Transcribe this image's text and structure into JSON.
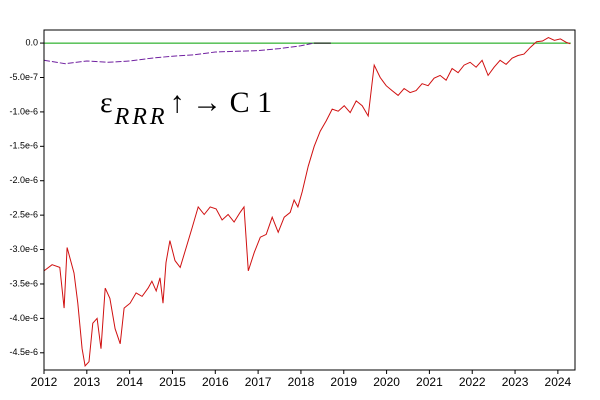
{
  "chart_data": {
    "type": "line",
    "annotation": {
      "base": "ε",
      "subscript": "RRR",
      "rest": "↑ → C 1"
    },
    "xlim": [
      2012,
      2024.4
    ],
    "xticks": [
      2012,
      2013,
      2014,
      2015,
      2016,
      2017,
      2018,
      2019,
      2020,
      2021,
      2022,
      2023,
      2024
    ],
    "ylim": [
      -4.75e-06,
      1.9e-07
    ],
    "yticks": [
      {
        "value": 0,
        "label": "0.0"
      },
      {
        "value": -5e-07,
        "label": "-5.0e-7"
      },
      {
        "value": -1e-06,
        "label": "-1.0e-6"
      },
      {
        "value": -1.5e-06,
        "label": "-1.5e-6"
      },
      {
        "value": -2e-06,
        "label": "-2.0e-6"
      },
      {
        "value": -2.5e-06,
        "label": "-2.5e-6"
      },
      {
        "value": -3e-06,
        "label": "-3.0e-6"
      },
      {
        "value": -3.5e-06,
        "label": "-3.5e-6"
      },
      {
        "value": -4e-06,
        "label": "-4.0e-6"
      },
      {
        "value": -4.5e-06,
        "label": "-4.5e-6"
      }
    ],
    "series": [
      {
        "color": "#00a000",
        "dashed": false,
        "x": [
          2012,
          2024.3
        ],
        "values": [
          0,
          0
        ]
      },
      {
        "color": "#7020a0",
        "dashed": true,
        "x": [
          2012.0,
          2012.5,
          2013.0,
          2013.5,
          2014.0,
          2014.5,
          2015.0,
          2015.5,
          2016.0,
          2016.5,
          2017.0,
          2017.5,
          2018.0,
          2018.3
        ],
        "values": [
          -2.5e-07,
          -3e-07,
          -2.6e-07,
          -2.8e-07,
          -2.6e-07,
          -2.2e-07,
          -1.9e-07,
          -1.7e-07,
          -1.3e-07,
          -1.2e-07,
          -1.1e-07,
          -8e-08,
          -4e-08,
          0
        ]
      },
      {
        "color": "#000000",
        "dashed": false,
        "x": [
          2018.3,
          2018.7
        ],
        "values": [
          0,
          0
        ]
      },
      {
        "color": "#d01010",
        "dashed": false,
        "x": [
          2012.0,
          2012.19,
          2012.37,
          2012.47,
          2012.54,
          2012.7,
          2012.79,
          2012.89,
          2012.96,
          2013.05,
          2013.14,
          2013.24,
          2013.33,
          2013.43,
          2013.54,
          2013.66,
          2013.78,
          2013.87,
          2014.01,
          2014.15,
          2014.29,
          2014.43,
          2014.52,
          2014.62,
          2014.71,
          2014.78,
          2014.85,
          2014.94,
          2015.06,
          2015.18,
          2015.32,
          2015.46,
          2015.6,
          2015.74,
          2015.88,
          2016.02,
          2016.16,
          2016.3,
          2016.44,
          2016.58,
          2016.67,
          2016.77,
          2016.91,
          2017.05,
          2017.19,
          2017.33,
          2017.47,
          2017.61,
          2017.75,
          2017.84,
          2017.93,
          2018.03,
          2018.17,
          2018.31,
          2018.45,
          2018.59,
          2018.73,
          2018.87,
          2019.01,
          2019.15,
          2019.29,
          2019.43,
          2019.57,
          2019.71,
          2019.85,
          2019.99,
          2020.13,
          2020.27,
          2020.41,
          2020.55,
          2020.69,
          2020.83,
          2020.97,
          2021.11,
          2021.25,
          2021.39,
          2021.53,
          2021.67,
          2021.81,
          2021.95,
          2022.09,
          2022.23,
          2022.37,
          2022.51,
          2022.65,
          2022.79,
          2022.93,
          2023.07,
          2023.21,
          2023.36,
          2023.5,
          2023.64,
          2023.78,
          2023.92,
          2024.06,
          2024.2,
          2024.29
        ],
        "values": [
          -3.31e-06,
          -3.22e-06,
          -3.26e-06,
          -3.85e-06,
          -2.97e-06,
          -3.34e-06,
          -3.78e-06,
          -4.44e-06,
          -4.69e-06,
          -4.63e-06,
          -4.07e-06,
          -4e-06,
          -4.44e-06,
          -3.56e-06,
          -3.71e-06,
          -4.15e-06,
          -4.37e-06,
          -3.85e-06,
          -3.78e-06,
          -3.63e-06,
          -3.68e-06,
          -3.56e-06,
          -3.46e-06,
          -3.6e-06,
          -3.41e-06,
          -3.78e-06,
          -3.19e-06,
          -2.87e-06,
          -3.16e-06,
          -3.26e-06,
          -2.97e-06,
          -2.68e-06,
          -2.38e-06,
          -2.49e-06,
          -2.38e-06,
          -2.41e-06,
          -2.57e-06,
          -2.49e-06,
          -2.6e-06,
          -2.46e-06,
          -2.38e-06,
          -3.31e-06,
          -3.04e-06,
          -2.82e-06,
          -2.78e-06,
          -2.53e-06,
          -2.75e-06,
          -2.53e-06,
          -2.46e-06,
          -2.28e-06,
          -2.38e-06,
          -2.16e-06,
          -1.79e-06,
          -1.5e-06,
          -1.28e-06,
          -1.13e-06,
          -9.6e-07,
          -9.9e-07,
          -9.1e-07,
          -1.01e-06,
          -8.4e-07,
          -9.1e-07,
          -1.06e-06,
          -3.2e-07,
          -5e-07,
          -6.2e-07,
          -6.9e-07,
          -7.6e-07,
          -6.6e-07,
          -7.2e-07,
          -6.9e-07,
          -5.9e-07,
          -6.2e-07,
          -5.1e-07,
          -4.7e-07,
          -5.4e-07,
          -3.7e-07,
          -4.3e-07,
          -3.2e-07,
          -2.8e-07,
          -3.5e-07,
          -2.5e-07,
          -4.7e-07,
          -3.5e-07,
          -2.5e-07,
          -3.1e-07,
          -2.2e-07,
          -1.8e-07,
          -1.6e-07,
          -6e-08,
          2e-08,
          3e-08,
          8e-08,
          4e-08,
          6e-08,
          1e-08,
          -1e-08
        ]
      }
    ]
  }
}
